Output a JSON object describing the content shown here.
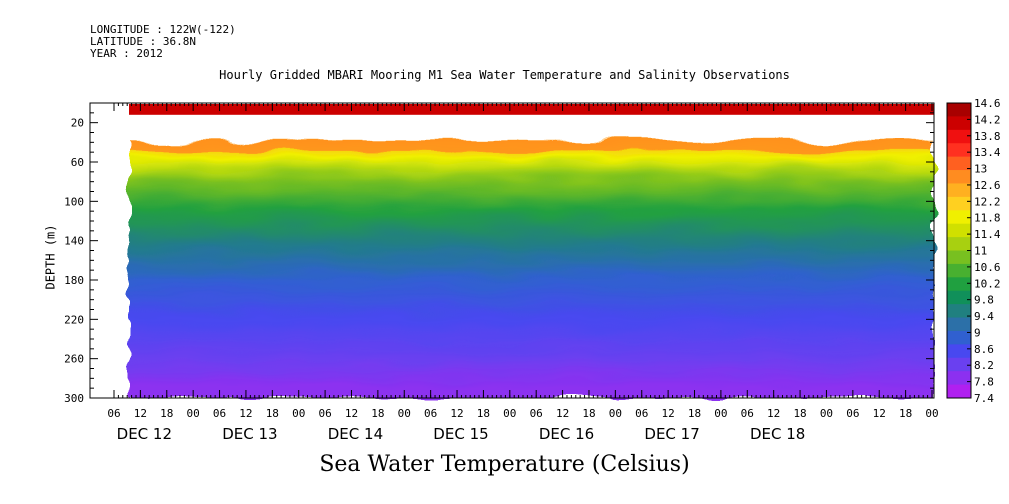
{
  "header": {
    "longitude": "LONGITUDE : 122W(-122)",
    "latitude": "LATITUDE : 36.8N",
    "year": "YEAR : 2012",
    "title": "Hourly Gridded MBARI Mooring M1 Sea Water Temperature and Salinity Observations"
  },
  "chart_data": {
    "type": "heatmap",
    "title": "Hourly Gridded MBARI Mooring M1 Sea Water Temperature and Salinity Observations",
    "subtitle": "Sea Water Temperature (Celsius)",
    "xlabel": "",
    "ylabel": "DEPTH (m)",
    "ylim": [
      300,
      0
    ],
    "y_ticks": [
      20,
      60,
      100,
      140,
      180,
      220,
      260,
      300
    ],
    "x_hour_ticks": [
      "06",
      "12",
      "18",
      "00",
      "06",
      "12",
      "18",
      "00",
      "06",
      "12",
      "18",
      "00",
      "06",
      "12",
      "18",
      "00",
      "06",
      "12",
      "18",
      "00",
      "06",
      "12",
      "18",
      "00",
      "06",
      "12",
      "18",
      "00",
      "06",
      "12",
      "18",
      "00"
    ],
    "x_day_labels": [
      "DEC 12",
      "DEC 13",
      "DEC 14",
      "DEC 15",
      "DEC 16",
      "DEC 17",
      "DEC 18"
    ],
    "colorbar_levels": [
      "14.6",
      "14.2",
      "13.8",
      "13.4",
      "13",
      "12.6",
      "12.2",
      "11.8",
      "11.4",
      "11",
      "10.6",
      "10.2",
      "9.8",
      "9.4",
      "9",
      "8.6",
      "8.2",
      "7.8",
      "7.4"
    ],
    "color_range": [
      7.4,
      14.6
    ],
    "colors": [
      "#a80000",
      "#cc0000",
      "#f01010",
      "#ff3020",
      "#ff6020",
      "#ff8c20",
      "#ffb020",
      "#ffd020",
      "#f0f000",
      "#d0e000",
      "#a8d010",
      "#78c020",
      "#48b030",
      "#20a040",
      "#10905a",
      "#208080",
      "#2c70a8",
      "#3060d0",
      "#4848f0",
      "#6a40f0",
      "#8c30f0",
      "#b020f0"
    ],
    "profile_depths_m": [
      10,
      32,
      38,
      55,
      80,
      110,
      140,
      180,
      220,
      260,
      290
    ],
    "mean_profile_celsius": [
      14.4,
      null,
      12.6,
      11.8,
      11.0,
      10.0,
      9.4,
      8.9,
      8.5,
      8.1,
      7.8
    ],
    "gap_depth_range_m": [
      12,
      38
    ]
  }
}
